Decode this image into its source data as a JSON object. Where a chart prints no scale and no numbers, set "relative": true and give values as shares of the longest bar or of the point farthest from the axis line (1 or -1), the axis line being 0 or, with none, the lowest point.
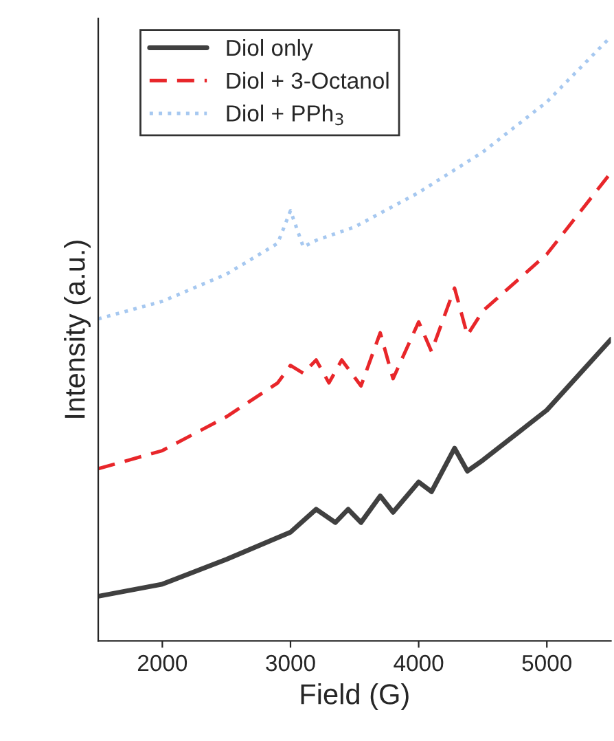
{
  "chart_data": {
    "type": "line",
    "xlabel": "Field (G)",
    "ylabel": "Intensity (a.u.)",
    "relative": true,
    "xlim": [
      1500,
      5500
    ],
    "xticks": [
      2000,
      3000,
      4000,
      5000
    ],
    "grid": false,
    "legend": "top left",
    "marker": "none",
    "series": [
      {
        "name": "Diol only",
        "color": "#404040",
        "line_style": "solid",
        "x": [
          1500,
          2000,
          2500,
          3000,
          3200,
          3350,
          3450,
          3550,
          3700,
          3800,
          4000,
          4100,
          4280,
          4380,
          4500,
          5000,
          5500
        ],
        "values": [
          0.074,
          0.094,
          0.135,
          0.18,
          0.218,
          0.196,
          0.218,
          0.196,
          0.24,
          0.213,
          0.263,
          0.247,
          0.319,
          0.281,
          0.299,
          0.382,
          0.499
        ]
      },
      {
        "name": "Diol + 3-Octanol",
        "color": "#e8262a",
        "line_style": "dashed",
        "x": [
          1500,
          2000,
          2500,
          2900,
          3000,
          3100,
          3200,
          3300,
          3400,
          3550,
          3700,
          3800,
          4000,
          4100,
          4280,
          4380,
          4500,
          5000,
          5500
        ],
        "values": [
          0.285,
          0.315,
          0.371,
          0.427,
          0.456,
          0.443,
          0.465,
          0.427,
          0.465,
          0.422,
          0.51,
          0.434,
          0.528,
          0.479,
          0.584,
          0.506,
          0.546,
          0.64,
          0.775
        ]
      },
      {
        "name": "Diol + PPh$_{3}$",
        "color": "#a6c8f0",
        "line_style": "dotted",
        "x": [
          1500,
          2000,
          2500,
          2900,
          3000,
          3100,
          3200,
          3500,
          4000,
          4500,
          5000,
          5500
        ],
        "values": [
          0.533,
          0.562,
          0.607,
          0.658,
          0.712,
          0.652,
          0.663,
          0.685,
          0.742,
          0.809,
          0.892,
          1.0
        ]
      }
    ]
  }
}
